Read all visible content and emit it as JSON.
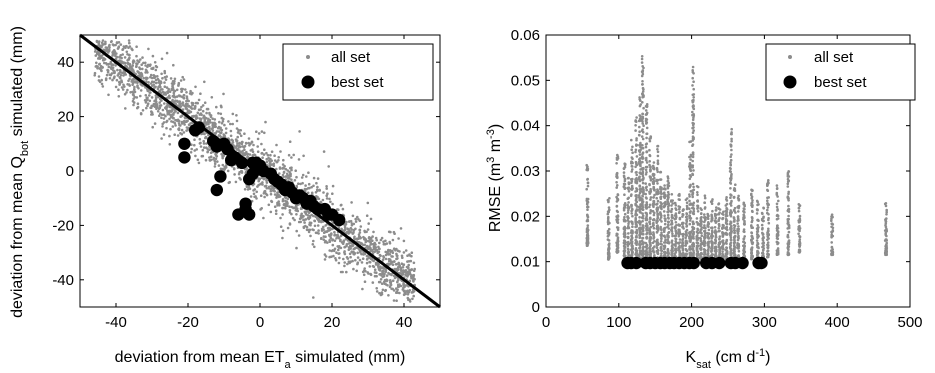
{
  "chart_data": [
    {
      "type": "scatter",
      "xlabel": "deviation from mean ET",
      "xlabel_sub": "a",
      "xlabel_tail": " simulated (mm)",
      "ylabel": "deviation from mean Q",
      "ylabel_sub": "bot",
      "ylabel_tail": " simulated (mm)",
      "xlim": [
        -50,
        50
      ],
      "ylim": [
        -50,
        50
      ],
      "xticks": [
        -40,
        -20,
        0,
        20,
        40
      ],
      "yticks": [
        -40,
        -20,
        0,
        20,
        40
      ],
      "grid": false,
      "legend": "top-right",
      "reference_line": [
        [
          -50,
          50
        ],
        [
          50,
          -50
        ]
      ],
      "series": [
        {
          "name": "all set",
          "color": "#8c8c8c",
          "marker": "small-dot",
          "description_trend": "dense band of points along y = -x with scatter of about ±12 mm",
          "points_band": {
            "x_range": [
              -46,
              43
            ],
            "y_center_slope": -1,
            "spread": 12
          }
        },
        {
          "name": "best set",
          "color": "#000000",
          "marker": "large-dot",
          "points": [
            [
              -21,
              10
            ],
            [
              -21,
              5
            ],
            [
              -18,
              15
            ],
            [
              -17,
              16
            ],
            [
              -13,
              11
            ],
            [
              -12,
              9
            ],
            [
              -11,
              -2
            ],
            [
              -12,
              -7
            ],
            [
              -10,
              10
            ],
            [
              -9,
              8
            ],
            [
              -8,
              4
            ],
            [
              -7,
              5
            ],
            [
              -6,
              -16
            ],
            [
              -5,
              3
            ],
            [
              -4,
              -14
            ],
            [
              -4,
              -12
            ],
            [
              -3,
              -16
            ],
            [
              -3,
              -3
            ],
            [
              -2,
              3
            ],
            [
              -2,
              -1
            ],
            [
              -1,
              3
            ],
            [
              0,
              2
            ],
            [
              1,
              0
            ],
            [
              3,
              -1
            ],
            [
              4,
              -3
            ],
            [
              5,
              -4
            ],
            [
              6,
              -5
            ],
            [
              7,
              -7
            ],
            [
              8,
              -6
            ],
            [
              9,
              -8
            ],
            [
              10,
              -10
            ],
            [
              11,
              -9
            ],
            [
              12,
              -10
            ],
            [
              13,
              -12
            ],
            [
              14,
              -11
            ],
            [
              15,
              -13
            ],
            [
              16,
              -14
            ],
            [
              18,
              -14
            ],
            [
              19,
              -16
            ],
            [
              20,
              -16
            ],
            [
              22,
              -18
            ]
          ]
        }
      ]
    },
    {
      "type": "scatter",
      "xlabel": "K",
      "xlabel_sub": "sat",
      "xlabel_tail_a": " (cm d",
      "xlabel_sup": "-1",
      "xlabel_tail_b": ")",
      "ylabel": "RMSE (m",
      "ylabel_sup1": "3",
      "ylabel_mid": " m",
      "ylabel_sup2": "-3",
      "ylabel_tail": ")",
      "xlim": [
        0,
        500
      ],
      "ylim": [
        0,
        0.06
      ],
      "xticks": [
        0,
        100,
        200,
        300,
        400,
        500
      ],
      "yticks": [
        0,
        0.01,
        0.02,
        0.03,
        0.04,
        0.05,
        0.06
      ],
      "ytick_labels": [
        "0",
        "0.01",
        "0.02",
        "0.03",
        "0.04",
        "0.05",
        "0.06"
      ],
      "grid": false,
      "legend": "top-right",
      "series": [
        {
          "name": "all set",
          "color": "#8c8c8c",
          "marker": "small-dot",
          "columns": [
            [
              57,
              0.0135,
              0.032
            ],
            [
              86,
              0.0105,
              0.024
            ],
            [
              98,
              0.012,
              0.034
            ],
            [
              108,
              0.0105,
              0.0325
            ],
            [
              113,
              0.0105,
              0.03
            ],
            [
              118,
              0.0105,
              0.037
            ],
            [
              124,
              0.0105,
              0.042
            ],
            [
              129,
              0.0105,
              0.047
            ],
            [
              133,
              0.0105,
              0.0555
            ],
            [
              138,
              0.0105,
              0.045
            ],
            [
              143,
              0.0105,
              0.038
            ],
            [
              148,
              0.0105,
              0.032
            ],
            [
              153,
              0.0105,
              0.036
            ],
            [
              158,
              0.0105,
              0.03
            ],
            [
              163,
              0.0105,
              0.027
            ],
            [
              168,
              0.0105,
              0.029
            ],
            [
              173,
              0.0105,
              0.025
            ],
            [
              178,
              0.0105,
              0.023
            ],
            [
              183,
              0.0105,
              0.026
            ],
            [
              188,
              0.0105,
              0.022
            ],
            [
              193,
              0.0105,
              0.024
            ],
            [
              198,
              0.0105,
              0.0365
            ],
            [
              202,
              0.0105,
              0.053
            ],
            [
              208,
              0.0105,
              0.027
            ],
            [
              213,
              0.0105,
              0.022
            ],
            [
              218,
              0.0105,
              0.025
            ],
            [
              223,
              0.0105,
              0.021
            ],
            [
              228,
              0.0105,
              0.024
            ],
            [
              233,
              0.0105,
              0.022
            ],
            [
              238,
              0.0105,
              0.023
            ],
            [
              243,
              0.0105,
              0.021
            ],
            [
              248,
              0.0105,
              0.025
            ],
            [
              254,
              0.0105,
              0.0395
            ],
            [
              259,
              0.0105,
              0.027
            ],
            [
              264,
              0.0105,
              0.025
            ],
            [
              272,
              0.0105,
              0.023
            ],
            [
              283,
              0.0105,
              0.026
            ],
            [
              291,
              0.0105,
              0.0235
            ],
            [
              298,
              0.0105,
              0.022
            ],
            [
              305,
              0.011,
              0.028
            ],
            [
              318,
              0.0115,
              0.027
            ],
            [
              333,
              0.0115,
              0.0305
            ],
            [
              348,
              0.012,
              0.023
            ],
            [
              393,
              0.0115,
              0.0205
            ],
            [
              467,
              0.0115,
              0.024
            ]
          ]
        },
        {
          "name": "best set",
          "color": "#000000",
          "marker": "large-dot",
          "points": [
            [
              112,
              0.0097
            ],
            [
              117,
              0.0097
            ],
            [
              124,
              0.0097
            ],
            [
              137,
              0.0097
            ],
            [
              143,
              0.0097
            ],
            [
              150,
              0.0097
            ],
            [
              157,
              0.0097
            ],
            [
              163,
              0.0097
            ],
            [
              170,
              0.0097
            ],
            [
              176,
              0.0097
            ],
            [
              183,
              0.0097
            ],
            [
              190,
              0.0097
            ],
            [
              197,
              0.0097
            ],
            [
              203,
              0.0097
            ],
            [
              220,
              0.0097
            ],
            [
              228,
              0.0097
            ],
            [
              238,
              0.0097
            ],
            [
              254,
              0.0097
            ],
            [
              260,
              0.0097
            ],
            [
              270,
              0.0097
            ],
            [
              292,
              0.0097
            ],
            [
              296,
              0.0097
            ]
          ]
        }
      ]
    }
  ]
}
